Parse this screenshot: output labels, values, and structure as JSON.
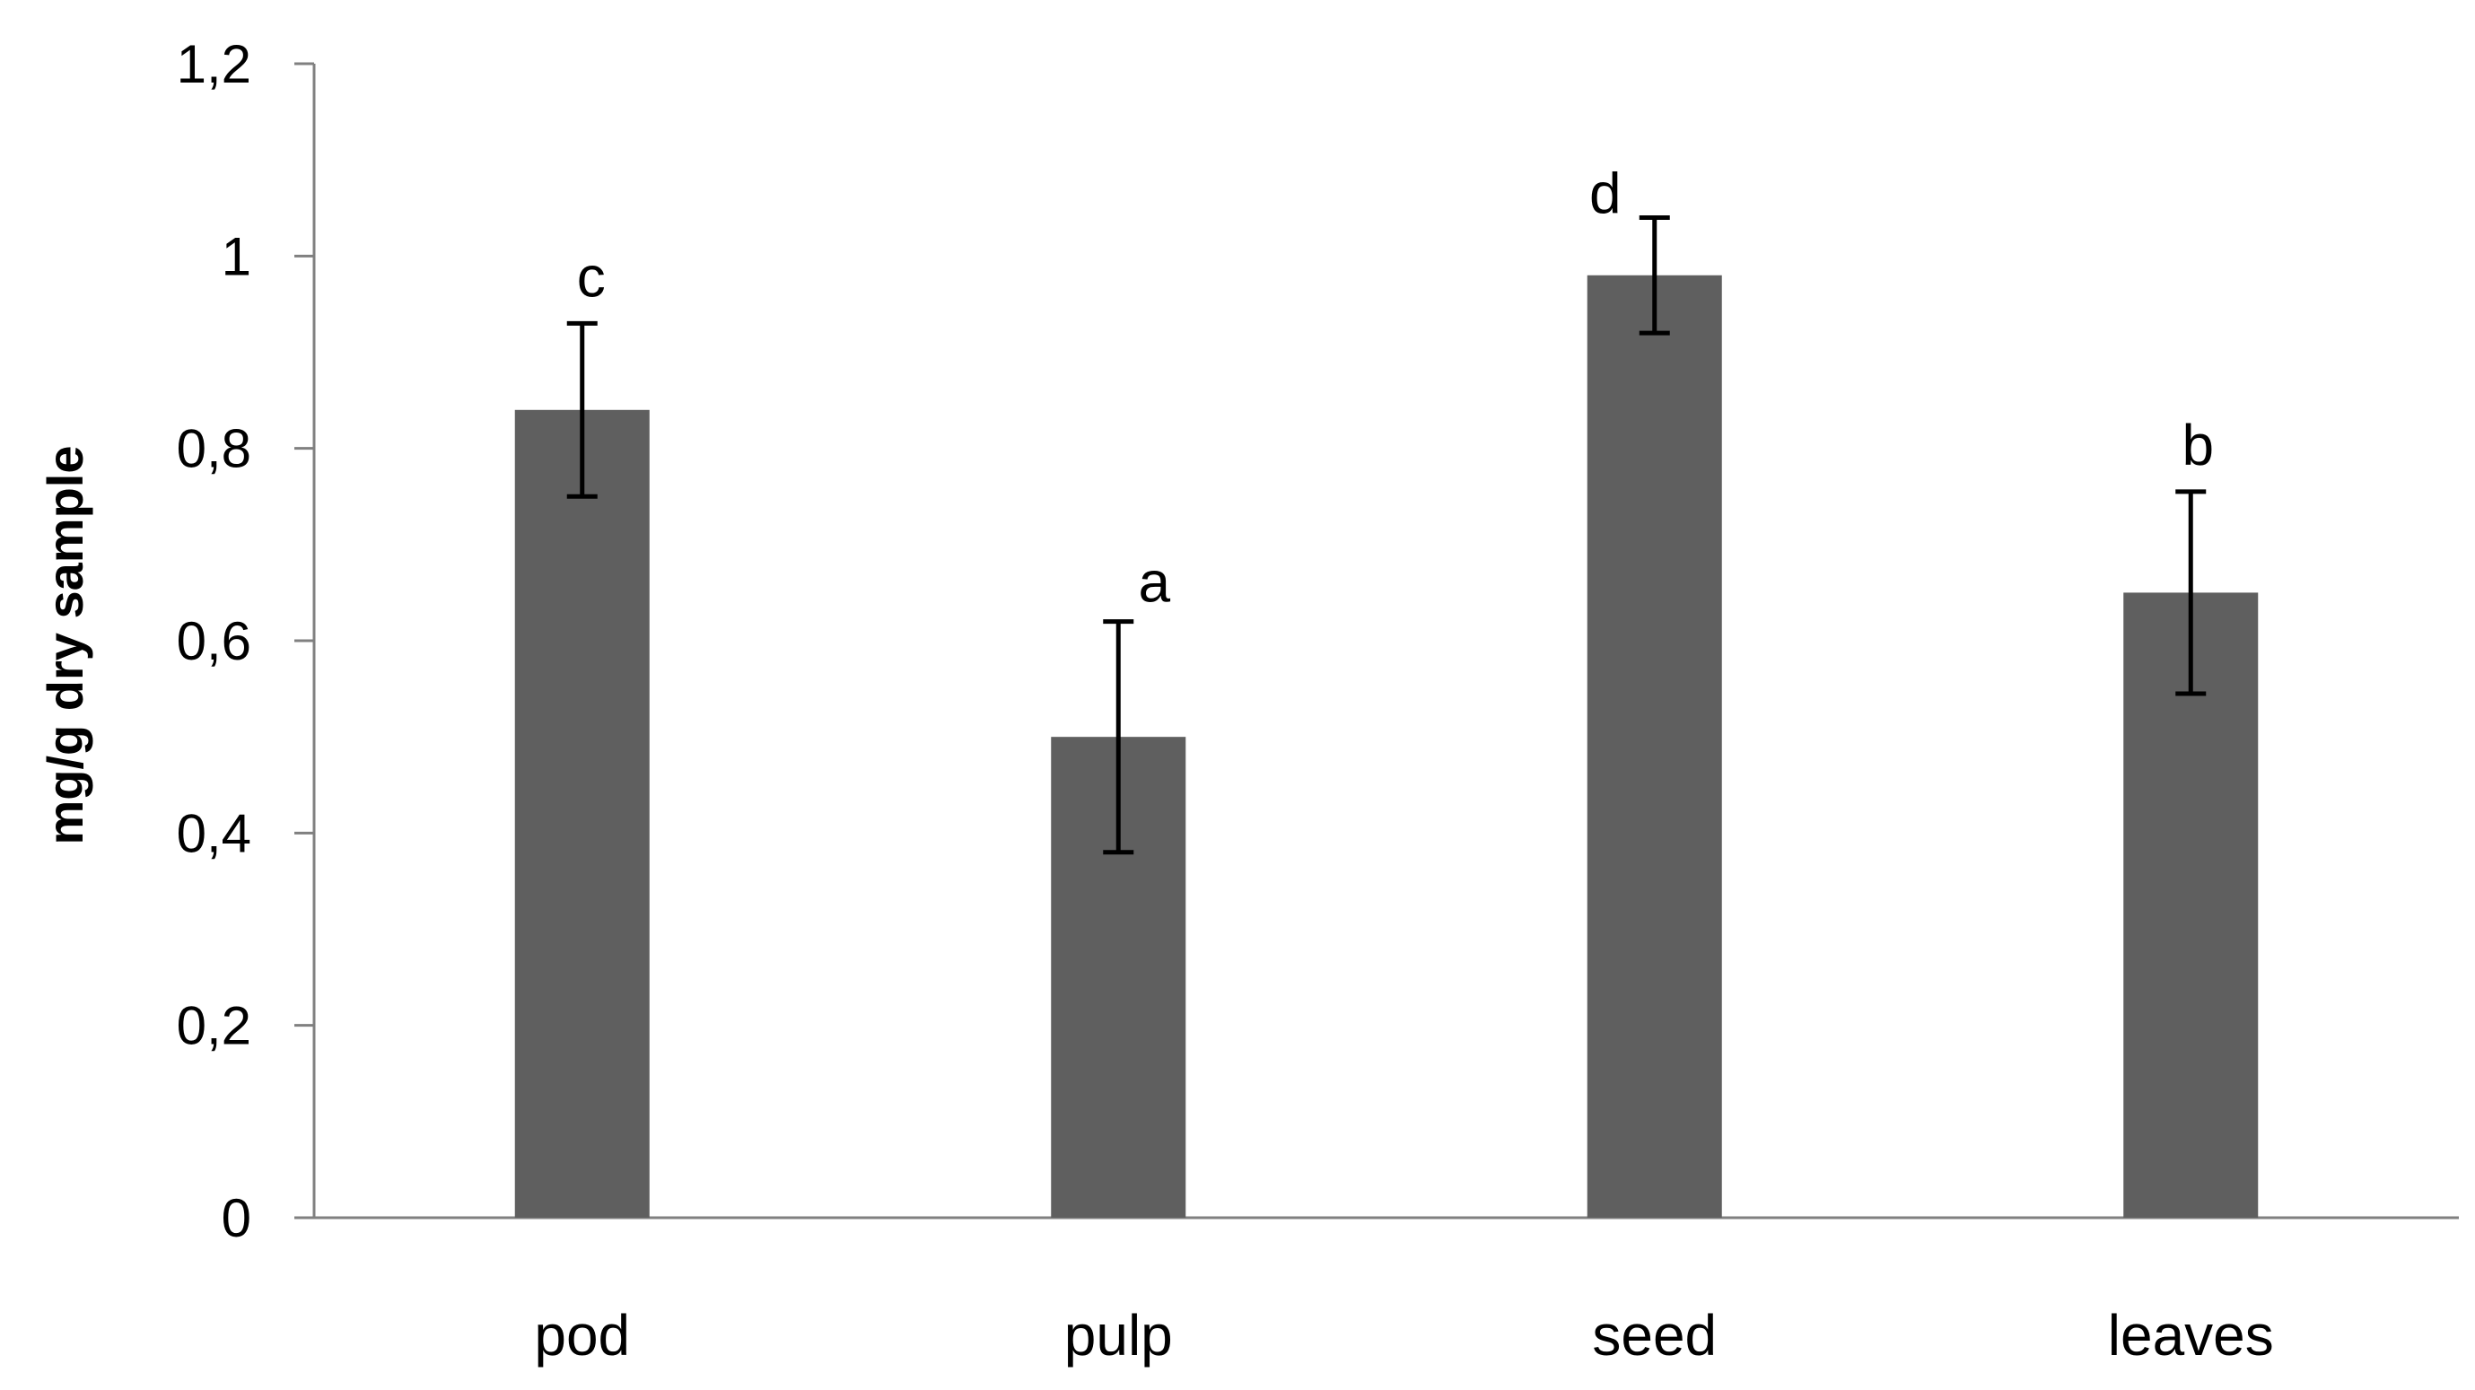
{
  "chart_data": {
    "type": "bar",
    "title": "",
    "xlabel": "",
    "ylabel": "mg/g dry sample",
    "ylim": [
      0,
      1.2
    ],
    "yticks": [
      0,
      0.2,
      0.4,
      0.6,
      0.8,
      1,
      1.2
    ],
    "ytick_labels": [
      "0",
      "0,2",
      "0,4",
      "0,6",
      "0,8",
      "1",
      "1,2"
    ],
    "categories": [
      "pod",
      "pulp",
      "seed",
      "leaves"
    ],
    "values": [
      0.84,
      0.5,
      0.98,
      0.65
    ],
    "error": [
      0.09,
      0.12,
      0.06,
      0.105
    ],
    "significance": [
      "c",
      "a",
      "d",
      "b"
    ],
    "grid": false,
    "bar_color": "#5f5f5f",
    "axis_color": "#808080",
    "error_color": "#000000"
  }
}
